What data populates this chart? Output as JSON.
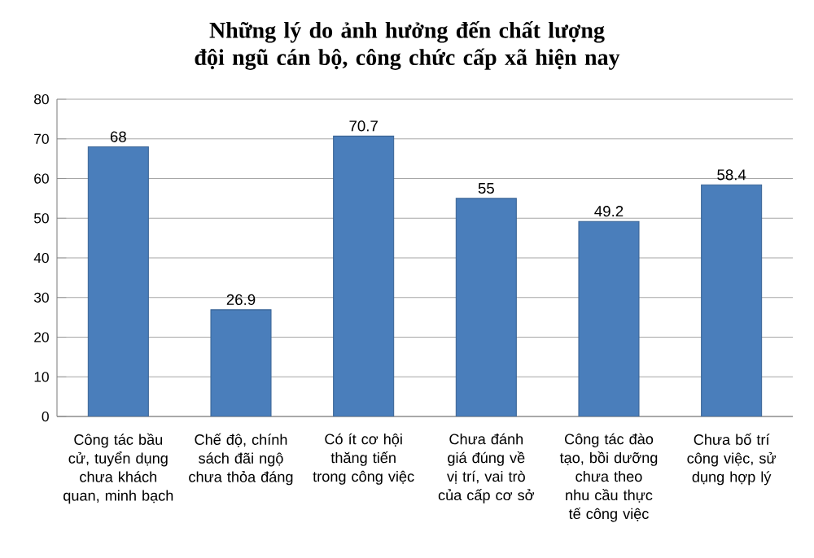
{
  "chart_data": {
    "type": "bar",
    "title": "Những lý do ảnh hưởng đến chất lượng đội ngũ cán bộ, công chức cấp xã hiện nay",
    "categories": [
      "Công tác bầu cử, tuyển dụng chưa khách quan, minh bạch",
      "Chế độ, chính sách đãi ngộ chưa thỏa đáng",
      "Có ít cơ hội thăng tiến trong công việc",
      "Chưa đánh giá đúng về vị trí, vai trò của cấp cơ sở",
      "Công tác đào tạo, bồi dưỡng chưa theo nhu cầu thực tế công việc",
      "Chưa bố trí công việc, sử dụng hợp lý"
    ],
    "values": [
      68,
      26.9,
      70.7,
      55,
      49.2,
      58.4
    ],
    "color": "#4a7ebb",
    "ylim": [
      0,
      80
    ],
    "yticks": [
      0,
      10,
      20,
      30,
      40,
      50,
      60,
      70,
      80
    ],
    "grid": "y",
    "data_labels": true
  }
}
